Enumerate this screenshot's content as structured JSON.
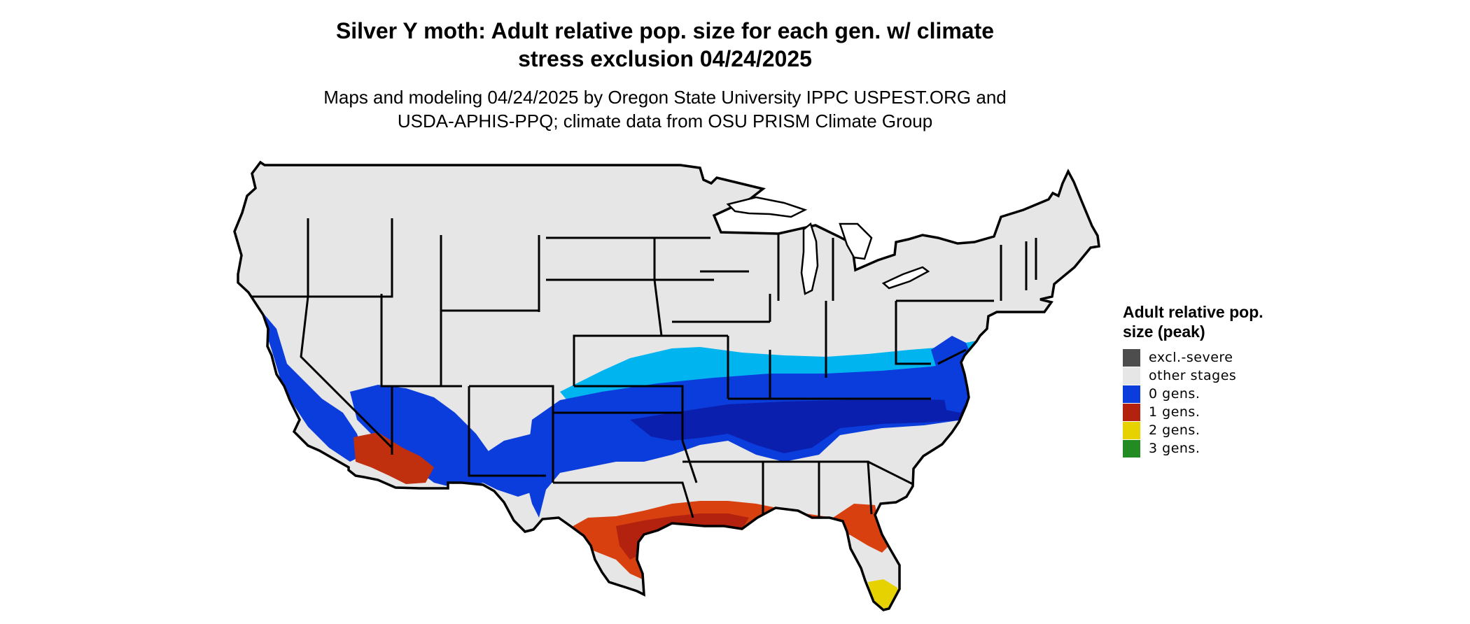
{
  "title_line1": "Silver Y moth: Adult relative pop. size for each gen. w/ climate",
  "title_line2": "stress exclusion 04/24/2025",
  "subtitle_line1": "Maps and modeling 04/24/2025 by Oregon State University IPPC USPEST.ORG and",
  "subtitle_line2": "USDA-APHIS-PPQ; climate data from OSU PRISM Climate Group",
  "legend": {
    "title": "Adult relative pop. size (peak)",
    "items": [
      {
        "label": "excl.-severe",
        "color": "#4d4d4d"
      },
      {
        "label": "other stages",
        "color": "#e6e6e6"
      },
      {
        "label": "0 gens.",
        "color": "#0a3ddc"
      },
      {
        "label": "1 gens.",
        "color": "#b2220e"
      },
      {
        "label": "2 gens.",
        "color": "#e6d200"
      },
      {
        "label": "3 gens.",
        "color": "#228b22"
      }
    ]
  },
  "colors": {
    "base": "#e6e6e6",
    "light_blue": "#00b4ef",
    "mid_blue": "#0a3ddc",
    "dark_blue": "#0b1fae",
    "red": "#c0300e",
    "orange": "#e04a12",
    "yellow": "#e6d200"
  }
}
